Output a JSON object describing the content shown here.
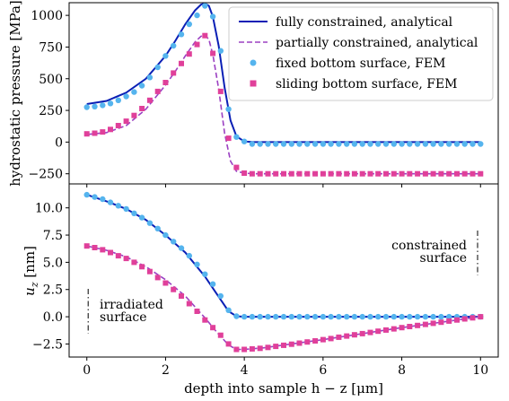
{
  "figure": {
    "xlabel": "depth into sample h − z  [μm]",
    "x_ticks": [
      "0",
      "2",
      "4",
      "6",
      "8",
      "10"
    ],
    "top": {
      "ylabel": "hydrostatic pressure [MPa]",
      "y_ticks": [
        "1000",
        "750",
        "500",
        "250",
        "0",
        "−250"
      ]
    },
    "bottom": {
      "ylabel_main": "u",
      "ylabel_sub": "z",
      "ylabel_unit": " [nm]",
      "y_ticks": [
        "10.0",
        "7.5",
        "5.0",
        "2.5",
        "0.0",
        "−2.5"
      ],
      "annotation_irradiated": [
        "irradiated",
        "surface"
      ],
      "annotation_constrained": [
        "constrained",
        "surface"
      ]
    },
    "legend": [
      "fully constrained, analytical",
      "partially constrained, analytical",
      "fixed bottom surface, FEM",
      "sliding bottom surface, FEM"
    ]
  },
  "colors": {
    "fully": "#0a1fb5",
    "partially": "#9b40c2",
    "fixed": "#55b4ee",
    "sliding": "#e0409a"
  },
  "chart_data": [
    {
      "type": "line",
      "xlabel": "",
      "ylabel": "hydrostatic pressure [MPa]",
      "xlim": [
        -0.45,
        10.45
      ],
      "ylim": [
        -330,
        1100
      ],
      "legend": "top-right",
      "series": [
        {
          "name": "fully constrained, analytical",
          "style": "solid",
          "x": [
            0,
            0.5,
            1,
            1.5,
            2,
            2.25,
            2.5,
            2.75,
            2.9,
            3.0,
            3.1,
            3.2,
            3.35,
            3.5,
            3.65,
            3.8,
            4.0,
            4.25,
            4.5,
            5,
            6,
            7,
            8,
            9,
            10
          ],
          "y": [
            300,
            325,
            390,
            500,
            680,
            800,
            930,
            1040,
            1085,
            1095,
            1075,
            990,
            760,
            430,
            170,
            45,
            5,
            0,
            0,
            0,
            0,
            0,
            0,
            0,
            0
          ]
        },
        {
          "name": "partially constrained, analytical",
          "style": "dashed",
          "x": [
            0,
            0.5,
            1,
            1.5,
            2,
            2.25,
            2.5,
            2.75,
            2.9,
            3.0,
            3.1,
            3.2,
            3.35,
            3.5,
            3.65,
            3.8,
            4.0,
            4.25,
            4.5,
            5,
            6,
            7,
            8,
            9,
            10
          ],
          "y": [
            60,
            75,
            130,
            260,
            450,
            560,
            680,
            790,
            835,
            845,
            810,
            690,
            420,
            70,
            -150,
            -230,
            -245,
            -250,
            -250,
            -250,
            -250,
            -250,
            -250,
            -250,
            -250
          ]
        },
        {
          "name": "fixed bottom surface, FEM",
          "style": "circle",
          "x": [
            0,
            0.2,
            0.4,
            0.6,
            0.8,
            1.0,
            1.2,
            1.4,
            1.6,
            1.8,
            2.0,
            2.2,
            2.4,
            2.6,
            2.8,
            3.0,
            3.2,
            3.4,
            3.6,
            3.8,
            4.0,
            4.2,
            4.4,
            4.6,
            4.8,
            5.0,
            5.2,
            5.4,
            5.6,
            5.8,
            6.0,
            6.2,
            6.4,
            6.6,
            6.8,
            7.0,
            7.2,
            7.4,
            7.6,
            7.8,
            8.0,
            8.2,
            8.4,
            8.6,
            8.8,
            9.0,
            9.2,
            9.4,
            9.6,
            9.8,
            10.0
          ],
          "y": [
            275,
            280,
            290,
            305,
            330,
            360,
            395,
            445,
            510,
            590,
            680,
            760,
            850,
            930,
            1000,
            1075,
            990,
            720,
            260,
            40,
            5,
            -15,
            -15,
            -15,
            -15,
            -15,
            -15,
            -15,
            -15,
            -15,
            -15,
            -15,
            -15,
            -15,
            -15,
            -15,
            -15,
            -15,
            -15,
            -15,
            -15,
            -15,
            -15,
            -15,
            -15,
            -15,
            -15,
            -15,
            -15,
            -15,
            -15
          ]
        },
        {
          "name": "sliding bottom surface, FEM",
          "style": "square",
          "x": [
            0,
            0.2,
            0.4,
            0.6,
            0.8,
            1.0,
            1.2,
            1.4,
            1.6,
            1.8,
            2.0,
            2.2,
            2.4,
            2.6,
            2.8,
            3.0,
            3.2,
            3.4,
            3.6,
            3.8,
            4.0,
            4.2,
            4.4,
            4.6,
            4.8,
            5.0,
            5.2,
            5.4,
            5.6,
            5.8,
            6.0,
            6.2,
            6.4,
            6.6,
            6.8,
            7.0,
            7.2,
            7.4,
            7.6,
            7.8,
            8.0,
            8.2,
            8.4,
            8.6,
            8.8,
            9.0,
            9.2,
            9.4,
            9.6,
            9.8,
            10.0
          ],
          "y": [
            65,
            70,
            80,
            100,
            130,
            165,
            210,
            265,
            330,
            400,
            470,
            545,
            620,
            695,
            770,
            840,
            700,
            400,
            30,
            -200,
            -245,
            -250,
            -250,
            -250,
            -250,
            -250,
            -250,
            -250,
            -250,
            -250,
            -250,
            -250,
            -250,
            -250,
            -250,
            -250,
            -250,
            -250,
            -250,
            -250,
            -250,
            -250,
            -250,
            -250,
            -250,
            -250,
            -250,
            -250,
            -250,
            -250,
            -250
          ]
        }
      ]
    },
    {
      "type": "line",
      "xlabel": "depth into sample h − z  [μm]",
      "ylabel": "u_z [nm]",
      "xlim": [
        -0.45,
        10.45
      ],
      "ylim": [
        -3.7,
        12.2
      ],
      "series": [
        {
          "name": "fully constrained, analytical",
          "style": "solid",
          "x": [
            0,
            0.5,
            1,
            1.5,
            2,
            2.5,
            3.0,
            3.3,
            3.6,
            3.8,
            4.0,
            5,
            6,
            7,
            8,
            9,
            10
          ],
          "y": [
            11.2,
            10.6,
            9.9,
            8.9,
            7.5,
            5.9,
            3.7,
            2.1,
            0.5,
            0.05,
            0,
            0,
            0,
            0,
            0,
            0,
            0
          ]
        },
        {
          "name": "partially constrained, analytical",
          "style": "dashed",
          "x": [
            0,
            0.5,
            1,
            1.5,
            2,
            2.5,
            3.0,
            3.3,
            3.6,
            3.8,
            4.0,
            4.5,
            5,
            6,
            7,
            8,
            9,
            10
          ],
          "y": [
            6.5,
            6.1,
            5.5,
            4.6,
            3.4,
            1.9,
            -0.1,
            -1.4,
            -2.6,
            -3.0,
            -3.0,
            -2.85,
            -2.6,
            -2.1,
            -1.55,
            -1.0,
            -0.5,
            0
          ]
        },
        {
          "name": "fixed bottom surface, FEM",
          "style": "circle",
          "x": [
            0,
            0.2,
            0.4,
            0.6,
            0.8,
            1.0,
            1.2,
            1.4,
            1.6,
            1.8,
            2.0,
            2.2,
            2.4,
            2.6,
            2.8,
            3.0,
            3.2,
            3.4,
            3.6,
            3.8,
            4.0,
            4.2,
            4.4,
            4.6,
            4.8,
            5.0,
            5.2,
            5.4,
            5.6,
            5.8,
            6.0,
            6.2,
            6.4,
            6.6,
            6.8,
            7.0,
            7.2,
            7.4,
            7.6,
            7.8,
            8.0,
            8.2,
            8.4,
            8.6,
            8.8,
            9.0,
            9.2,
            9.4,
            9.6,
            9.8,
            10.0
          ],
          "y": [
            11.2,
            11.0,
            10.8,
            10.5,
            10.2,
            9.9,
            9.5,
            9.1,
            8.6,
            8.1,
            7.5,
            6.9,
            6.3,
            5.6,
            4.8,
            3.9,
            3.0,
            1.9,
            0.6,
            0.05,
            0.0,
            0.0,
            0.0,
            0.0,
            0.0,
            0.0,
            0.0,
            0.0,
            0.0,
            0.0,
            0.0,
            0.0,
            0.0,
            0.0,
            0.0,
            0.0,
            0.0,
            0.0,
            0.0,
            0.0,
            0.0,
            0.0,
            0.0,
            0.0,
            0.0,
            0.0,
            0.0,
            0.0,
            0.0,
            0.0,
            0.0
          ]
        },
        {
          "name": "sliding bottom surface, FEM",
          "style": "square",
          "x": [
            0,
            0.2,
            0.4,
            0.6,
            0.8,
            1.0,
            1.2,
            1.4,
            1.6,
            1.8,
            2.0,
            2.2,
            2.4,
            2.6,
            2.8,
            3.0,
            3.2,
            3.4,
            3.6,
            3.8,
            4.0,
            4.2,
            4.4,
            4.6,
            4.8,
            5.0,
            5.2,
            5.4,
            5.6,
            5.8,
            6.0,
            6.2,
            6.4,
            6.6,
            6.8,
            7.0,
            7.2,
            7.4,
            7.6,
            7.8,
            8.0,
            8.2,
            8.4,
            8.6,
            8.8,
            9.0,
            9.2,
            9.4,
            9.6,
            9.8,
            10.0
          ],
          "y": [
            6.5,
            6.35,
            6.15,
            5.9,
            5.6,
            5.35,
            5.0,
            4.6,
            4.15,
            3.6,
            3.1,
            2.5,
            1.9,
            1.2,
            0.5,
            -0.3,
            -1.0,
            -1.7,
            -2.5,
            -3.0,
            -3.0,
            -2.95,
            -2.9,
            -2.82,
            -2.72,
            -2.62,
            -2.52,
            -2.42,
            -2.32,
            -2.22,
            -2.1,
            -2.0,
            -1.88,
            -1.77,
            -1.66,
            -1.55,
            -1.44,
            -1.33,
            -1.22,
            -1.11,
            -1.0,
            -0.9,
            -0.8,
            -0.7,
            -0.6,
            -0.5,
            -0.4,
            -0.3,
            -0.2,
            -0.1,
            0.0
          ]
        }
      ]
    }
  ]
}
